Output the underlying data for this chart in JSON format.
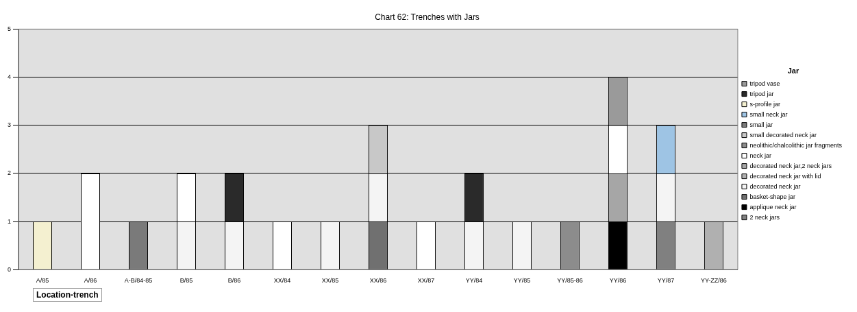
{
  "chart_data": {
    "type": "bar",
    "title": "Chart 62: Trenches with Jars",
    "xlabel": "Location-trench",
    "legend_title": "Jar",
    "stacked": true,
    "legend": "right",
    "grid": "y",
    "ylim": [
      0,
      5
    ],
    "yticks": [
      0,
      1,
      2,
      3,
      4,
      5
    ],
    "categories": [
      "A/85",
      "A/86",
      "A-B/84-85",
      "B/85",
      "B/86",
      "XX/84",
      "XX/85",
      "XX/86",
      "XX/87",
      "YY/84",
      "YY/85",
      "YY/85-86",
      "YY/86",
      "YY/87",
      "YY-ZZ/86"
    ],
    "series": [
      {
        "name": "2 neck jars",
        "color": "#808080",
        "values": [
          null,
          null,
          null,
          null,
          null,
          null,
          null,
          null,
          null,
          null,
          null,
          null,
          null,
          1,
          null
        ]
      },
      {
        "name": "applique neck jar",
        "color": "#000000",
        "values": [
          null,
          null,
          null,
          null,
          null,
          null,
          null,
          null,
          null,
          null,
          null,
          null,
          1,
          null,
          null
        ]
      },
      {
        "name": "basket-shape jar",
        "color": "#707070",
        "values": [
          null,
          null,
          null,
          null,
          null,
          null,
          null,
          1,
          null,
          null,
          null,
          null,
          null,
          null,
          null
        ]
      },
      {
        "name": "decorated neck jar",
        "color": "#f4f4f4",
        "values": [
          null,
          null,
          null,
          1,
          1,
          null,
          1,
          1,
          null,
          1,
          1,
          null,
          null,
          1,
          null
        ]
      },
      {
        "name": "decorated neck jar with lid",
        "color": "#b0b0b0",
        "values": [
          null,
          null,
          null,
          null,
          null,
          null,
          null,
          null,
          null,
          null,
          null,
          null,
          null,
          null,
          1
        ]
      },
      {
        "name": "decorated neck jar,2 neck jars",
        "color": "#a6a6a6",
        "values": [
          null,
          null,
          null,
          null,
          null,
          null,
          null,
          null,
          null,
          null,
          null,
          null,
          1,
          null,
          null
        ]
      },
      {
        "name": "neck jar",
        "color": "#ffffff",
        "values": [
          null,
          2,
          null,
          1,
          null,
          1,
          null,
          null,
          1,
          null,
          null,
          null,
          1,
          null,
          null
        ]
      },
      {
        "name": "neolithic/chalcolithic jar fragments",
        "color": "#8c8c8c",
        "values": [
          null,
          null,
          null,
          null,
          null,
          null,
          null,
          null,
          null,
          null,
          null,
          1,
          null,
          null,
          null
        ]
      },
      {
        "name": "small decorated neck jar",
        "color": "#c8c8c8",
        "values": [
          null,
          null,
          null,
          null,
          null,
          null,
          null,
          1,
          null,
          null,
          null,
          null,
          null,
          null,
          null
        ]
      },
      {
        "name": "small jar",
        "color": "#7a7a7a",
        "values": [
          null,
          null,
          1,
          null,
          null,
          null,
          null,
          null,
          null,
          null,
          null,
          null,
          null,
          null,
          null
        ]
      },
      {
        "name": "small neck jar",
        "color": "#9ec4e4",
        "values": [
          null,
          null,
          null,
          null,
          null,
          null,
          null,
          null,
          null,
          null,
          null,
          null,
          null,
          1,
          null
        ]
      },
      {
        "name": "s-profile jar",
        "color": "#f4f0d0",
        "values": [
          1,
          null,
          null,
          null,
          null,
          null,
          null,
          null,
          null,
          null,
          null,
          null,
          null,
          null,
          null
        ]
      },
      {
        "name": "tripod jar",
        "color": "#2a2a2a",
        "values": [
          null,
          null,
          null,
          null,
          1,
          null,
          null,
          null,
          null,
          1,
          null,
          null,
          null,
          null,
          null
        ]
      },
      {
        "name": "tripod vase",
        "color": "#9a9a9a",
        "values": [
          null,
          null,
          null,
          null,
          null,
          null,
          null,
          null,
          null,
          null,
          null,
          null,
          1,
          null,
          null
        ]
      }
    ]
  }
}
